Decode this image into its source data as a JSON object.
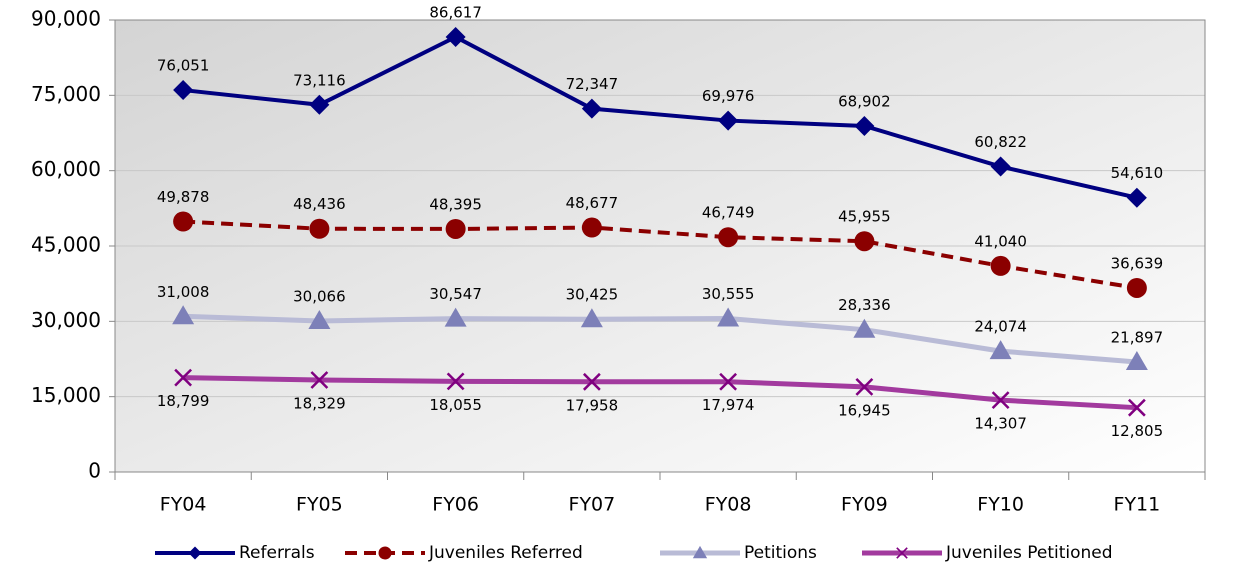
{
  "chart_data": {
    "type": "line",
    "categories": [
      "FY04",
      "FY05",
      "FY06",
      "FY07",
      "FY08",
      "FY09",
      "FY10",
      "FY11"
    ],
    "series": [
      {
        "name": "Referrals",
        "color": "#000080",
        "marker": "diamond",
        "dash": "solid",
        "values": [
          76051,
          73116,
          86617,
          72347,
          69976,
          68902,
          60822,
          54610
        ],
        "value_labels": [
          "76,051",
          "73,116",
          "86,617",
          "72,347",
          "69,976",
          "68,902",
          "60,822",
          "54,610"
        ]
      },
      {
        "name": "Juveniles Referred",
        "color": "#8b0000",
        "marker": "circle",
        "dash": "dashed",
        "values": [
          49878,
          48436,
          48395,
          48677,
          46749,
          45955,
          41040,
          36639
        ],
        "value_labels": [
          "49,878",
          "48,436",
          "48,395",
          "48,677",
          "46,749",
          "45,955",
          "41,040",
          "36,639"
        ]
      },
      {
        "name": "Petitions",
        "color": "#7d80b8",
        "marker": "triangle",
        "dash": "solid",
        "values": [
          31008,
          30066,
          30547,
          30425,
          30555,
          28336,
          24074,
          21897
        ],
        "value_labels": [
          "31,008",
          "30,066",
          "30,547",
          "30,425",
          "30,555",
          "28,336",
          "24,074",
          "21,897"
        ]
      },
      {
        "name": "Juveniles Petitioned",
        "color": "#800080",
        "marker": "x",
        "dash": "solid",
        "values": [
          18799,
          18329,
          18055,
          17958,
          17974,
          16945,
          14307,
          12805
        ],
        "value_labels": [
          "18,799",
          "18,329",
          "18,055",
          "17,958",
          "17,974",
          "16,945",
          "14,307",
          "12,805"
        ]
      }
    ],
    "ylim": [
      0,
      90000
    ],
    "yticks": [
      0,
      {
        "value": 15000,
        "label": "15,000"
      },
      {
        "value": 30000,
        "label": "30,000"
      },
      {
        "value": 45000,
        "label": "45,000"
      },
      {
        "value": 60000,
        "label": "60,000"
      },
      {
        "value": 75000,
        "label": "75,000"
      },
      {
        "value": 90000,
        "label": "90,000"
      }
    ],
    "grid": true,
    "legend": "bottom"
  }
}
